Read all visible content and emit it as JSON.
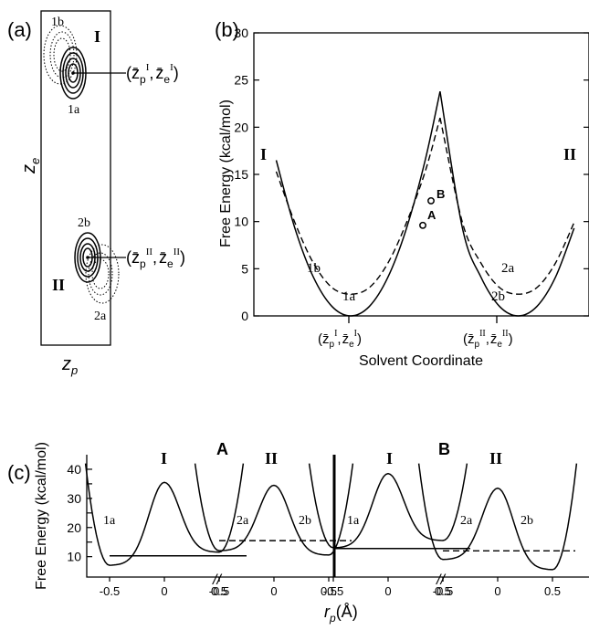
{
  "panel_a": {
    "label": "(a)",
    "state_I": "I",
    "state_II": "II",
    "peak_1b": "1b",
    "peak_1a": "1a",
    "peak_2b": "2b",
    "peak_2a": "2a",
    "xlabel": "z",
    "xlabel_sub": "p",
    "ylabel": "z",
    "ylabel_sub": "e",
    "ann_I": {
      "z": "z̄",
      "p": "p",
      "I1": "I",
      "e": "e",
      "I2": "I"
    },
    "ann_II": {
      "z": "z̄",
      "p": "p",
      "I1": "II",
      "e": "e",
      "I2": "II"
    }
  },
  "panel_b": {
    "label": "(b)",
    "state_I": "I",
    "state_II": "II",
    "point_A": "A",
    "point_B": "B",
    "curve_1b": "1b",
    "curve_1a": "1a",
    "curve_2a": "2a",
    "curve_2b": "2b",
    "xtick_I": {
      "z": "z̄",
      "p": "p",
      "sup": "I",
      "e": "e"
    },
    "xtick_II": {
      "z": "z̄",
      "p": "p",
      "sup": "II",
      "e": "e"
    }
  },
  "panel_c": {
    "label": "(c)",
    "point_A": "A",
    "point_B": "B",
    "well_I": "I",
    "well_II": "II",
    "lbl_1a": "1a",
    "lbl_2a": "2a",
    "lbl_2b": "2b",
    "break_mark": "//",
    "xlabel_r": "r",
    "xlabel_sub": "p",
    "xlabel_unit": "(Å)"
  },
  "chart_data": [
    {
      "type": "line",
      "title": "",
      "xlabel": "Solvent Coordinate",
      "ylabel": "Free Energy (kcal/mol)",
      "ylim": [
        0,
        30
      ],
      "yticks": [
        0,
        5,
        10,
        15,
        20,
        25,
        30
      ],
      "x_markers": [
        "I",
        "II"
      ],
      "series": [
        {
          "name": "1a",
          "style": "solid",
          "x": [
            -1.0,
            -0.75,
            -0.5,
            -0.25,
            0.0,
            0.25,
            0.5,
            0.75,
            1.0,
            1.2
          ],
          "values": [
            16.5,
            9.3,
            4.1,
            1.0,
            0.0,
            1.0,
            4.1,
            9.3,
            16.5,
            23.8
          ]
        },
        {
          "name": "1b",
          "style": "dashed",
          "x": [
            -1.0,
            -0.75,
            -0.5,
            -0.25,
            0.0,
            0.25,
            0.5,
            0.75,
            1.0,
            1.2
          ],
          "values": [
            15.3,
            9.9,
            5.6,
            3.0,
            2.3,
            3.0,
            5.6,
            9.9,
            15.3,
            21.0
          ]
        },
        {
          "name": "2b",
          "style": "solid",
          "x": [
            1.2,
            1.5,
            1.75,
            2.0,
            2.25,
            2.5,
            2.75,
            3.0
          ],
          "values": [
            23.8,
            9.3,
            4.1,
            1.0,
            0.0,
            1.0,
            4.1,
            9.3
          ]
        },
        {
          "name": "2a",
          "style": "dashed",
          "x": [
            1.2,
            1.5,
            1.75,
            2.0,
            2.25,
            2.5,
            2.75,
            3.0
          ],
          "values": [
            21.0,
            9.9,
            5.6,
            3.0,
            2.3,
            3.0,
            5.6,
            9.9
          ]
        }
      ],
      "points": [
        {
          "name": "A",
          "y": 9.6
        },
        {
          "name": "B",
          "y": 12.2
        }
      ]
    },
    {
      "type": "line",
      "xlabel": "rp (Å)",
      "ylabel": "Free Energy (kcal/mol)",
      "ylim": [
        0,
        45
      ],
      "yticks": [
        10,
        15,
        20,
        25,
        30,
        35,
        40
      ],
      "xticks": [
        -0.5,
        0,
        0.5
      ],
      "panels": [
        {
          "name": "A",
          "series": [
            {
              "name": "I",
              "barrier": 35.5,
              "well_left": 7.0,
              "well_right": 11.5
            },
            {
              "name": "II",
              "barrier": 34.5,
              "well_left": 12.0,
              "well_right": 10.5
            }
          ],
          "solvated_flat_I": 10.3,
          "solvated_flat_II": 15.5
        },
        {
          "name": "B",
          "series": [
            {
              "name": "I",
              "barrier": 38.5,
              "well_left": 13.0,
              "well_right": 15.5
            },
            {
              "name": "II",
              "barrier": 33.5,
              "well_left": 9.0,
              "well_right": 5.5
            }
          ],
          "solvated_flat_I": 12.8,
          "solvated_flat_II": 12.0
        }
      ]
    }
  ]
}
